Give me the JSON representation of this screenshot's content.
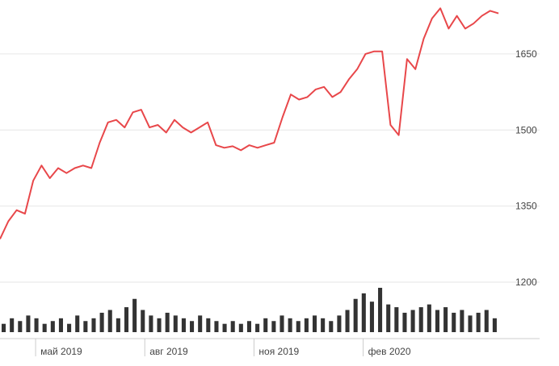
{
  "chart_data": {
    "type": "line",
    "ylim": [
      1200,
      1750
    ],
    "yticks": [
      1200,
      1350,
      1500,
      1650
    ],
    "xtick_labels": [
      {
        "date": "2019-05-01",
        "label": "май 2019"
      },
      {
        "date": "2019-08-01",
        "label": "авг 2019"
      },
      {
        "date": "2019-11-01",
        "label": "ноя 2019"
      },
      {
        "date": "2020-02-01",
        "label": "фев 2020"
      }
    ],
    "grid": true,
    "line_color": "#e8474a",
    "volume_color": "#333333",
    "price": {
      "x": [
        "2019-04-01",
        "2019-04-08",
        "2019-04-15",
        "2019-04-22",
        "2019-04-29",
        "2019-05-06",
        "2019-05-13",
        "2019-05-20",
        "2019-05-27",
        "2019-06-03",
        "2019-06-10",
        "2019-06-17",
        "2019-06-24",
        "2019-07-01",
        "2019-07-08",
        "2019-07-15",
        "2019-07-22",
        "2019-07-29",
        "2019-08-05",
        "2019-08-12",
        "2019-08-19",
        "2019-08-26",
        "2019-09-02",
        "2019-09-09",
        "2019-09-16",
        "2019-09-23",
        "2019-09-30",
        "2019-10-07",
        "2019-10-14",
        "2019-10-21",
        "2019-10-28",
        "2019-11-04",
        "2019-11-11",
        "2019-11-18",
        "2019-11-25",
        "2019-12-02",
        "2019-12-09",
        "2019-12-16",
        "2019-12-23",
        "2019-12-30",
        "2020-01-06",
        "2020-01-13",
        "2020-01-20",
        "2020-01-27",
        "2020-02-03",
        "2020-02-10",
        "2020-02-17",
        "2020-02-24",
        "2020-03-02",
        "2020-03-09",
        "2020-03-16",
        "2020-03-23",
        "2020-03-30",
        "2020-04-06",
        "2020-04-13",
        "2020-04-20",
        "2020-04-27",
        "2020-05-04",
        "2020-05-11",
        "2020-05-18",
        "2020-05-25"
      ],
      "y": [
        1285,
        1320,
        1342,
        1335,
        1400,
        1430,
        1405,
        1425,
        1415,
        1425,
        1430,
        1425,
        1475,
        1515,
        1520,
        1505,
        1535,
        1540,
        1505,
        1510,
        1495,
        1520,
        1505,
        1495,
        1505,
        1515,
        1470,
        1465,
        1468,
        1460,
        1470,
        1465,
        1470,
        1475,
        1525,
        1570,
        1560,
        1565,
        1580,
        1585,
        1565,
        1575,
        1600,
        1620,
        1650,
        1655,
        1655,
        1510,
        1490,
        1640,
        1620,
        1680,
        1720,
        1740,
        1700,
        1725,
        1700,
        1710,
        1725,
        1735,
        1730
      ]
    },
    "volume": [
      3,
      5,
      4,
      6,
      5,
      3,
      4,
      5,
      3,
      6,
      4,
      5,
      7,
      8,
      5,
      9,
      12,
      8,
      6,
      5,
      7,
      6,
      5,
      4,
      6,
      5,
      4,
      3,
      4,
      3,
      4,
      3,
      5,
      4,
      6,
      5,
      4,
      5,
      6,
      5,
      4,
      6,
      8,
      12,
      14,
      11,
      16,
      10,
      9,
      7,
      8,
      9,
      10,
      8,
      9,
      7,
      8,
      6,
      7,
      8,
      5
    ]
  }
}
